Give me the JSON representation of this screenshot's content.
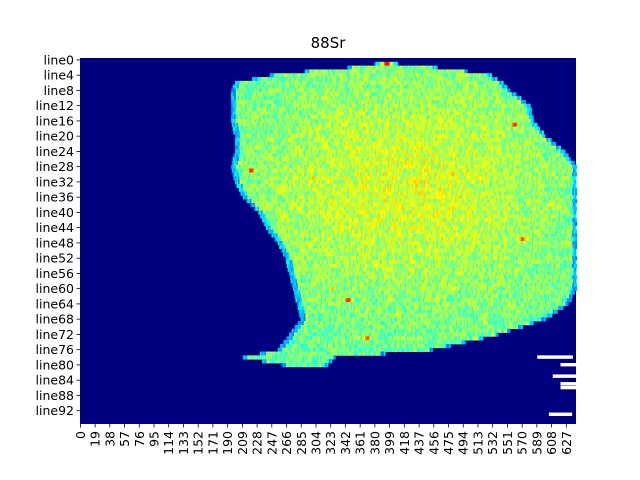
{
  "chart_data": {
    "type": "heatmap",
    "title": "88Sr",
    "colormap": "jet",
    "colorbar": false,
    "background_color": "#00007f",
    "xlabel": "",
    "ylabel": "",
    "n_cols": 640,
    "n_rows": 96,
    "x_tick_labels": [
      "0",
      "19",
      "38",
      "57",
      "76",
      "95",
      "114",
      "133",
      "152",
      "171",
      "190",
      "209",
      "228",
      "247",
      "266",
      "285",
      "304",
      "323",
      "342",
      "361",
      "380",
      "399",
      "418",
      "437",
      "456",
      "475",
      "494",
      "513",
      "532",
      "551",
      "570",
      "589",
      "608",
      "627"
    ],
    "y_tick_labels": [
      "line0",
      "line4",
      "line8",
      "line12",
      "line16",
      "line20",
      "line24",
      "line28",
      "line32",
      "line36",
      "line40",
      "line44",
      "line48",
      "line52",
      "line56",
      "line60",
      "line64",
      "line68",
      "line72",
      "line76",
      "line80",
      "line84",
      "line88",
      "line92"
    ],
    "signal_region": {
      "description_rows": "approx extents of nonzero signal per line (column indices)",
      "rows": [
        {
          "line": 1,
          "start": 380,
          "end": 410
        },
        {
          "line": 2,
          "start": 345,
          "end": 460
        },
        {
          "line": 3,
          "start": 290,
          "end": 500
        },
        {
          "line": 4,
          "start": 245,
          "end": 530
        },
        {
          "line": 6,
          "start": 200,
          "end": 545
        },
        {
          "line": 8,
          "start": 195,
          "end": 555
        },
        {
          "line": 12,
          "start": 195,
          "end": 580
        },
        {
          "line": 16,
          "start": 195,
          "end": 585
        },
        {
          "line": 20,
          "start": 200,
          "end": 600
        },
        {
          "line": 24,
          "start": 200,
          "end": 625
        },
        {
          "line": 28,
          "start": 195,
          "end": 640
        },
        {
          "line": 32,
          "start": 200,
          "end": 640
        },
        {
          "line": 36,
          "start": 210,
          "end": 640
        },
        {
          "line": 40,
          "start": 230,
          "end": 640
        },
        {
          "line": 44,
          "start": 240,
          "end": 640
        },
        {
          "line": 48,
          "start": 255,
          "end": 640
        },
        {
          "line": 52,
          "start": 265,
          "end": 640
        },
        {
          "line": 56,
          "start": 270,
          "end": 640
        },
        {
          "line": 60,
          "start": 275,
          "end": 640
        },
        {
          "line": 64,
          "start": 280,
          "end": 630
        },
        {
          "line": 68,
          "start": 285,
          "end": 600
        },
        {
          "line": 72,
          "start": 270,
          "end": 540
        },
        {
          "line": 76,
          "start": 255,
          "end": 455
        },
        {
          "line": 78,
          "start": 210,
          "end": 330
        },
        {
          "line": 80,
          "start": 260,
          "end": 320
        }
      ]
    },
    "hotspots": [
      {
        "line": 1,
        "col": 395,
        "value": 0.9
      },
      {
        "line": 5,
        "col": 565,
        "value": 0.8
      },
      {
        "line": 17,
        "col": 560,
        "value": 0.85
      },
      {
        "line": 29,
        "col": 220,
        "value": 0.85
      },
      {
        "line": 31,
        "col": 300,
        "value": 0.7
      },
      {
        "line": 30,
        "col": 480,
        "value": 0.7
      },
      {
        "line": 47,
        "col": 570,
        "value": 0.8
      },
      {
        "line": 60,
        "col": 325,
        "value": 0.7
      },
      {
        "line": 63,
        "col": 345,
        "value": 0.85
      },
      {
        "line": 73,
        "col": 370,
        "value": 0.8
      }
    ],
    "nan_bars": [
      {
        "line": 78,
        "start": 590,
        "end": 636
      },
      {
        "line": 80,
        "start": 620,
        "end": 640
      },
      {
        "line": 83,
        "start": 610,
        "end": 640
      },
      {
        "line": 85,
        "start": 620,
        "end": 640
      },
      {
        "line": 86,
        "start": 620,
        "end": 640
      },
      {
        "line": 93,
        "start": 605,
        "end": 635
      }
    ]
  }
}
